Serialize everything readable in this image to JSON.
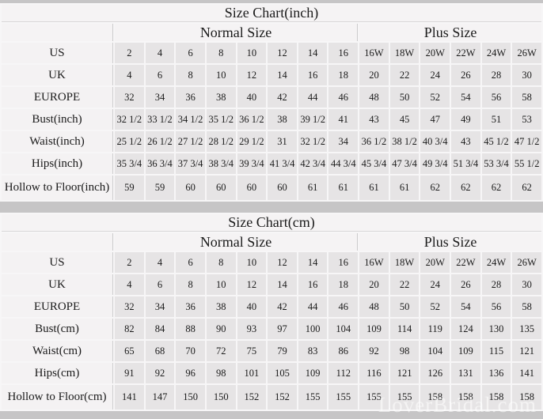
{
  "watermark": "LoverBridal.com",
  "colors": {
    "page_bg": "#c6c5c6",
    "gridline": "#f7f6f7",
    "header_bg": "#f5f3f4",
    "label_bg": "#f4f2f3",
    "cell_bg": "#e6e4e5",
    "text": "#1b1b1b"
  },
  "chart_data": [
    {
      "type": "table",
      "title": "Size Chart(inch)",
      "normal_label": "Normal Size",
      "plus_label": "Plus Size",
      "normal_span": 8,
      "plus_span": 6,
      "rows": [
        {
          "label": "US",
          "values": [
            "2",
            "4",
            "6",
            "8",
            "10",
            "12",
            "14",
            "16",
            "16W",
            "18W",
            "20W",
            "22W",
            "24W",
            "26W"
          ]
        },
        {
          "label": "UK",
          "values": [
            "4",
            "6",
            "8",
            "10",
            "12",
            "14",
            "16",
            "18",
            "20",
            "22",
            "24",
            "26",
            "28",
            "30"
          ]
        },
        {
          "label": "EUROPE",
          "values": [
            "32",
            "34",
            "36",
            "38",
            "40",
            "42",
            "44",
            "46",
            "48",
            "50",
            "52",
            "54",
            "56",
            "58"
          ]
        },
        {
          "label": "Bust(inch)",
          "values": [
            "32 1/2",
            "33 1/2",
            "34 1/2",
            "35 1/2",
            "36 1/2",
            "38",
            "39 1/2",
            "41",
            "43",
            "45",
            "47",
            "49",
            "51",
            "53"
          ]
        },
        {
          "label": "Waist(inch)",
          "values": [
            "25 1/2",
            "26 1/2",
            "27 1/2",
            "28 1/2",
            "29 1/2",
            "31",
            "32 1/2",
            "34",
            "36 1/2",
            "38 1/2",
            "40 3/4",
            "43",
            "45 1/2",
            "47 1/2"
          ]
        },
        {
          "label": "Hips(inch)",
          "values": [
            "35 3/4",
            "36 3/4",
            "37 3/4",
            "38 3/4",
            "39 3/4",
            "41 3/4",
            "42 3/4",
            "44 3/4",
            "45 3/4",
            "47 3/4",
            "49 3/4",
            "51 3/4",
            "53 3/4",
            "55 1/2"
          ]
        },
        {
          "label": "Hollow to Floor(inch)",
          "values": [
            "59",
            "59",
            "60",
            "60",
            "60",
            "60",
            "61",
            "61",
            "61",
            "61",
            "62",
            "62",
            "62",
            "62"
          ]
        }
      ]
    },
    {
      "type": "table",
      "title": "Size Chart(cm)",
      "normal_label": "Normal Size",
      "plus_label": "Plus Size",
      "normal_span": 8,
      "plus_span": 6,
      "rows": [
        {
          "label": "US",
          "values": [
            "2",
            "4",
            "6",
            "8",
            "10",
            "12",
            "14",
            "16",
            "16W",
            "18W",
            "20W",
            "22W",
            "24W",
            "26W"
          ]
        },
        {
          "label": "UK",
          "values": [
            "4",
            "6",
            "8",
            "10",
            "12",
            "14",
            "16",
            "18",
            "20",
            "22",
            "24",
            "26",
            "28",
            "30"
          ]
        },
        {
          "label": "EUROPE",
          "values": [
            "32",
            "34",
            "36",
            "38",
            "40",
            "42",
            "44",
            "46",
            "48",
            "50",
            "52",
            "54",
            "56",
            "58"
          ]
        },
        {
          "label": "Bust(cm)",
          "values": [
            "82",
            "84",
            "88",
            "90",
            "93",
            "97",
            "100",
            "104",
            "109",
            "114",
            "119",
            "124",
            "130",
            "135"
          ]
        },
        {
          "label": "Waist(cm)",
          "values": [
            "65",
            "68",
            "70",
            "72",
            "75",
            "79",
            "83",
            "86",
            "92",
            "98",
            "104",
            "109",
            "115",
            "121"
          ]
        },
        {
          "label": "Hips(cm)",
          "values": [
            "91",
            "92",
            "96",
            "98",
            "101",
            "105",
            "109",
            "112",
            "116",
            "121",
            "126",
            "131",
            "136",
            "141"
          ]
        },
        {
          "label": "Hollow to Floor(cm)",
          "values": [
            "141",
            "147",
            "150",
            "150",
            "152",
            "152",
            "155",
            "155",
            "155",
            "155",
            "158",
            "158",
            "158",
            "158"
          ]
        }
      ]
    }
  ]
}
